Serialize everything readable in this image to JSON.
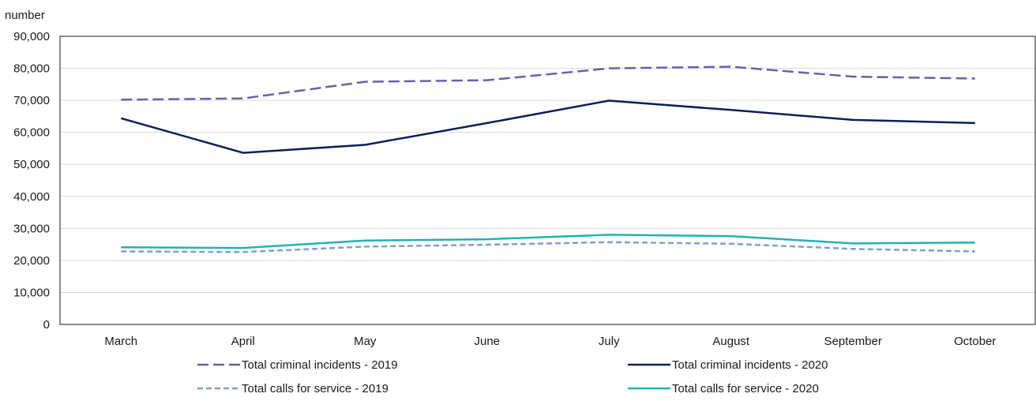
{
  "chart_data": {
    "type": "line",
    "ylabel": "number",
    "xlabel": "",
    "ylim": [
      0,
      90000
    ],
    "y_ticks": [
      0,
      10000,
      20000,
      30000,
      40000,
      50000,
      60000,
      70000,
      80000,
      90000
    ],
    "y_tick_labels": [
      "0",
      "10,000",
      "20,000",
      "30,000",
      "40,000",
      "50,000",
      "60,000",
      "70,000",
      "80,000",
      "90,000"
    ],
    "grid": true,
    "legend_position": "bottom",
    "categories": [
      "March",
      "April",
      "May",
      "June",
      "July",
      "August",
      "September",
      "October"
    ],
    "series": [
      {
        "name": "Total criminal incidents - 2019",
        "color": "#6a5fb0",
        "dash": "dashed",
        "values": [
          70200,
          70600,
          75800,
          76300,
          80000,
          80500,
          77400,
          76800
        ]
      },
      {
        "name": "Total criminal incidents - 2020",
        "color": "#0c1f5c",
        "dash": "solid",
        "values": [
          64400,
          53600,
          56100,
          62900,
          69900,
          67000,
          63900,
          62900
        ]
      },
      {
        "name": "Total calls for service - 2019",
        "color": "#7f9fcf",
        "dash": "dotted",
        "values": [
          22800,
          22600,
          24300,
          24900,
          25700,
          25200,
          23600,
          22800
        ]
      },
      {
        "name": "Total calls for service - 2020",
        "color": "#1fb3b3",
        "dash": "solid",
        "values": [
          24100,
          23900,
          26200,
          26600,
          28000,
          27600,
          25300,
          25600
        ]
      }
    ]
  }
}
